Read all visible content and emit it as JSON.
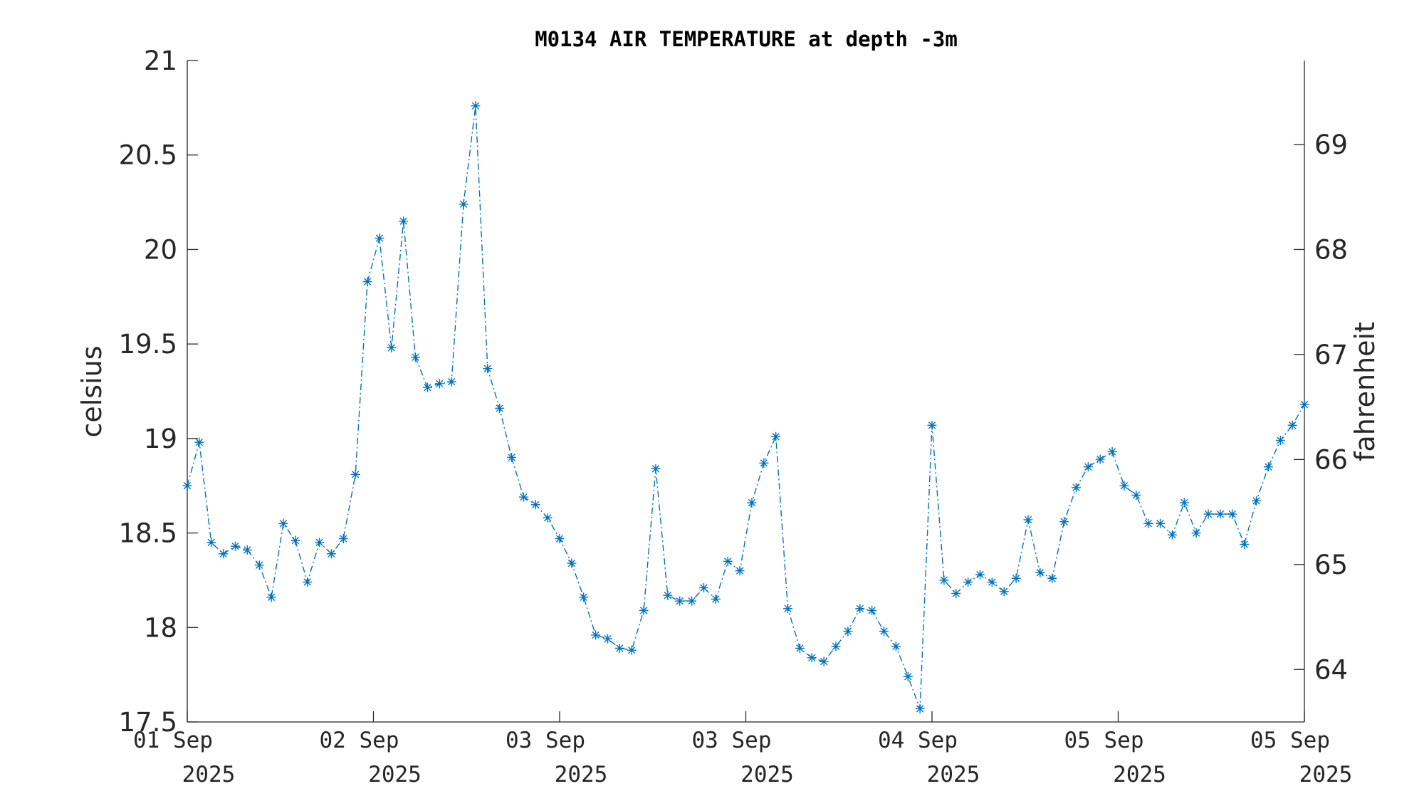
{
  "chart_data": {
    "type": "line",
    "title": "M0134 AIR TEMPERATURE at depth -3m",
    "ylabel": "celsius",
    "ylabel_right": "fahrenheit",
    "ylim": [
      17.5,
      21
    ],
    "ylim_right_fahrenheit": [
      63.5,
      69.8
    ],
    "yticks": [
      "17.5",
      "18",
      "18.5",
      "19",
      "19.5",
      "20",
      "20.5",
      "21"
    ],
    "yticks_right": [
      "64",
      "65",
      "66",
      "67",
      "68",
      "69"
    ],
    "xticks": [
      {
        "line1": "01 Sep",
        "line2": "2025"
      },
      {
        "line1": "02 Sep",
        "line2": "2025"
      },
      {
        "line1": "03 Sep",
        "line2": "2025"
      },
      {
        "line1": "03 Sep",
        "line2": "2025"
      },
      {
        "line1": "04 Sep",
        "line2": "2025"
      },
      {
        "line1": "05 Sep",
        "line2": "2025"
      },
      {
        "line1": "05 Sep",
        "line2": "2025"
      }
    ],
    "grid": false,
    "marker": "asterisk",
    "line_style": "dash-dot",
    "color": "#0072BD",
    "series": [
      {
        "values": [
          18.75,
          18.98,
          18.45,
          18.39,
          18.43,
          18.41,
          18.33,
          18.16,
          18.55,
          18.46,
          18.24,
          18.45,
          18.39,
          18.47,
          18.81,
          19.83,
          20.06,
          19.48,
          20.15,
          19.43,
          19.27,
          19.29,
          19.3,
          20.24,
          20.76,
          19.37,
          19.16,
          18.9,
          18.69,
          18.65,
          18.58,
          18.47,
          18.34,
          18.16,
          17.96,
          17.94,
          17.89,
          17.88,
          18.09,
          18.84,
          18.17,
          18.14,
          18.14,
          18.21,
          18.15,
          18.35,
          18.3,
          18.66,
          18.87,
          19.01,
          18.1,
          17.89,
          17.84,
          17.82,
          17.9,
          17.98,
          18.1,
          18.09,
          17.98,
          17.9,
          17.74,
          17.57,
          19.07,
          18.25,
          18.18,
          18.24,
          18.28,
          18.24,
          18.19,
          18.26,
          18.57,
          18.29,
          18.26,
          18.56,
          18.74,
          18.85,
          18.89,
          18.93,
          18.75,
          18.7,
          18.55,
          18.55,
          18.49,
          18.66,
          18.5,
          18.6,
          18.6,
          18.6,
          18.44,
          18.67,
          18.85,
          18.99,
          19.07,
          19.18
        ]
      }
    ]
  }
}
